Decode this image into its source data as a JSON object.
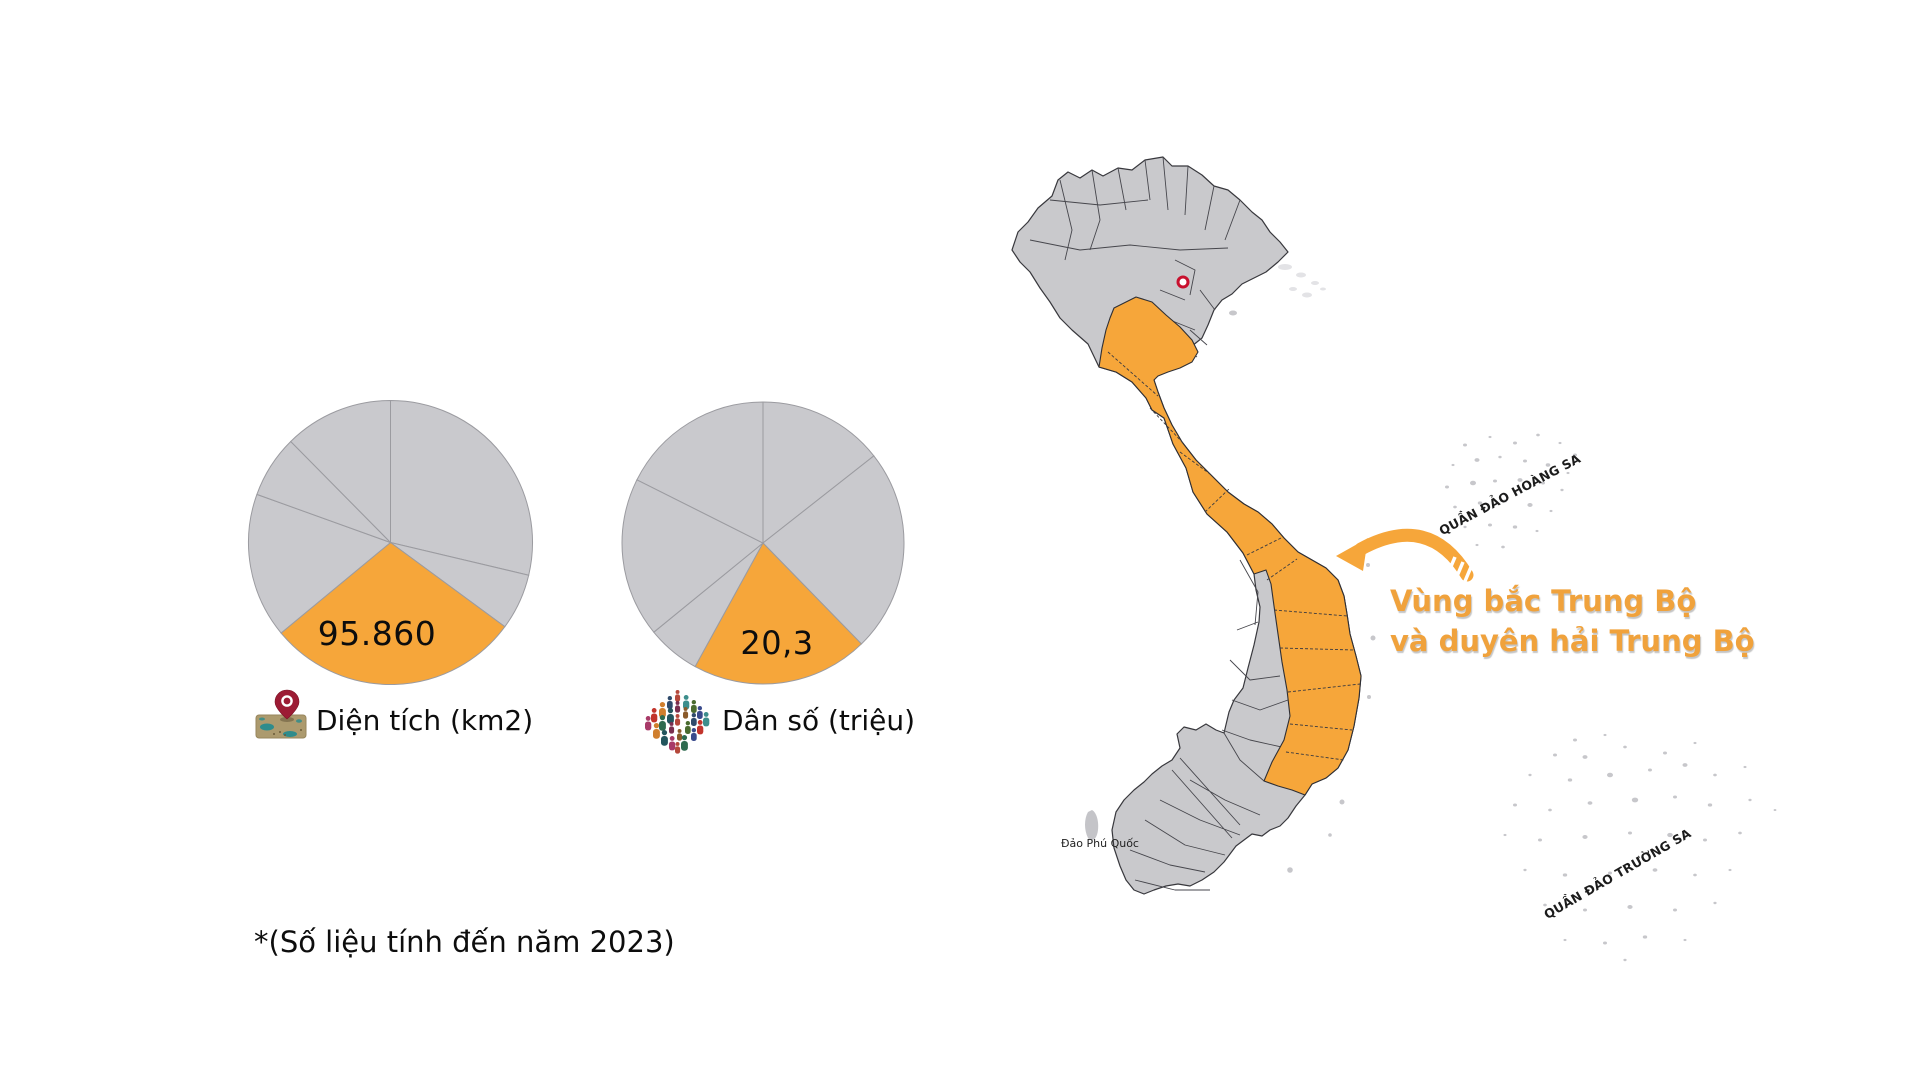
{
  "footnote": "*(Số liệu tính đến năm 2023)",
  "figures": {
    "area": {
      "label": "Diện tích (km2)",
      "value": "95.860",
      "icon": "map-location-pin-icon"
    },
    "population": {
      "label": "Dân số (triệu)",
      "value": "20,3",
      "icon": "people-crowd-icon"
    }
  },
  "chart_data": [
    {
      "type": "pie",
      "title": "Diện tích (km2)",
      "unit": "km2",
      "highlight_label": "95.860",
      "start_angle_deg": -90,
      "direction": "clockwise",
      "legend_position": "none",
      "colors": {
        "highlight": "#F6A63A",
        "other": "#C9C9CD",
        "stroke": "#9B9BA0"
      },
      "slices": [
        {
          "name": "other-region-1",
          "share_pct": 28.7,
          "highlighted": false
        },
        {
          "name": "other-region-2",
          "share_pct": 6.4,
          "highlighted": false
        },
        {
          "name": "Vùng bắc Trung Bộ và duyên hải Trung Bộ",
          "share_pct": 28.9,
          "highlighted": true,
          "value_label": "95.860"
        },
        {
          "name": "other-region-3",
          "share_pct": 16.5,
          "highlighted": false
        },
        {
          "name": "other-region-4",
          "share_pct": 7.1,
          "highlighted": false
        },
        {
          "name": "other-region-5",
          "share_pct": 12.4,
          "highlighted": false
        }
      ]
    },
    {
      "type": "pie",
      "title": "Dân số (triệu)",
      "unit": "triệu",
      "highlight_label": "20,3",
      "start_angle_deg": -90,
      "direction": "clockwise",
      "legend_position": "none",
      "colors": {
        "highlight": "#F6A63A",
        "other": "#C9C9CD",
        "stroke": "#9B9BA0"
      },
      "slices": [
        {
          "name": "other-region-1",
          "share_pct": 14.4,
          "highlighted": false
        },
        {
          "name": "other-region-2",
          "share_pct": 23.3,
          "highlighted": false
        },
        {
          "name": "Vùng bắc Trung Bộ và duyên hải Trung Bộ",
          "share_pct": 20.3,
          "highlighted": true,
          "value_label": "20,3"
        },
        {
          "name": "other-region-3",
          "share_pct": 6.1,
          "highlighted": false
        },
        {
          "name": "other-region-4",
          "share_pct": 18.3,
          "highlighted": false
        },
        {
          "name": "other-region-5",
          "share_pct": 17.6,
          "highlighted": false
        }
      ]
    }
  ],
  "map": {
    "callout": {
      "line1": "Vùng bắc Trung Bộ",
      "line2": "và duyên hải Trung Bộ"
    },
    "labels": {
      "hoang_sa": "QUẦN ĐẢO HOÀNG SA",
      "truong_sa": "QUẦN ĐẢO TRƯỜNG SA",
      "phu_quoc": "Đảo Phú Quốc"
    },
    "colors": {
      "highlight": "#F6A63A",
      "land": "#C9C9CC",
      "border": "#38383D",
      "capital_marker": "#C8102E",
      "island_speck": "#C7C7CB"
    }
  }
}
